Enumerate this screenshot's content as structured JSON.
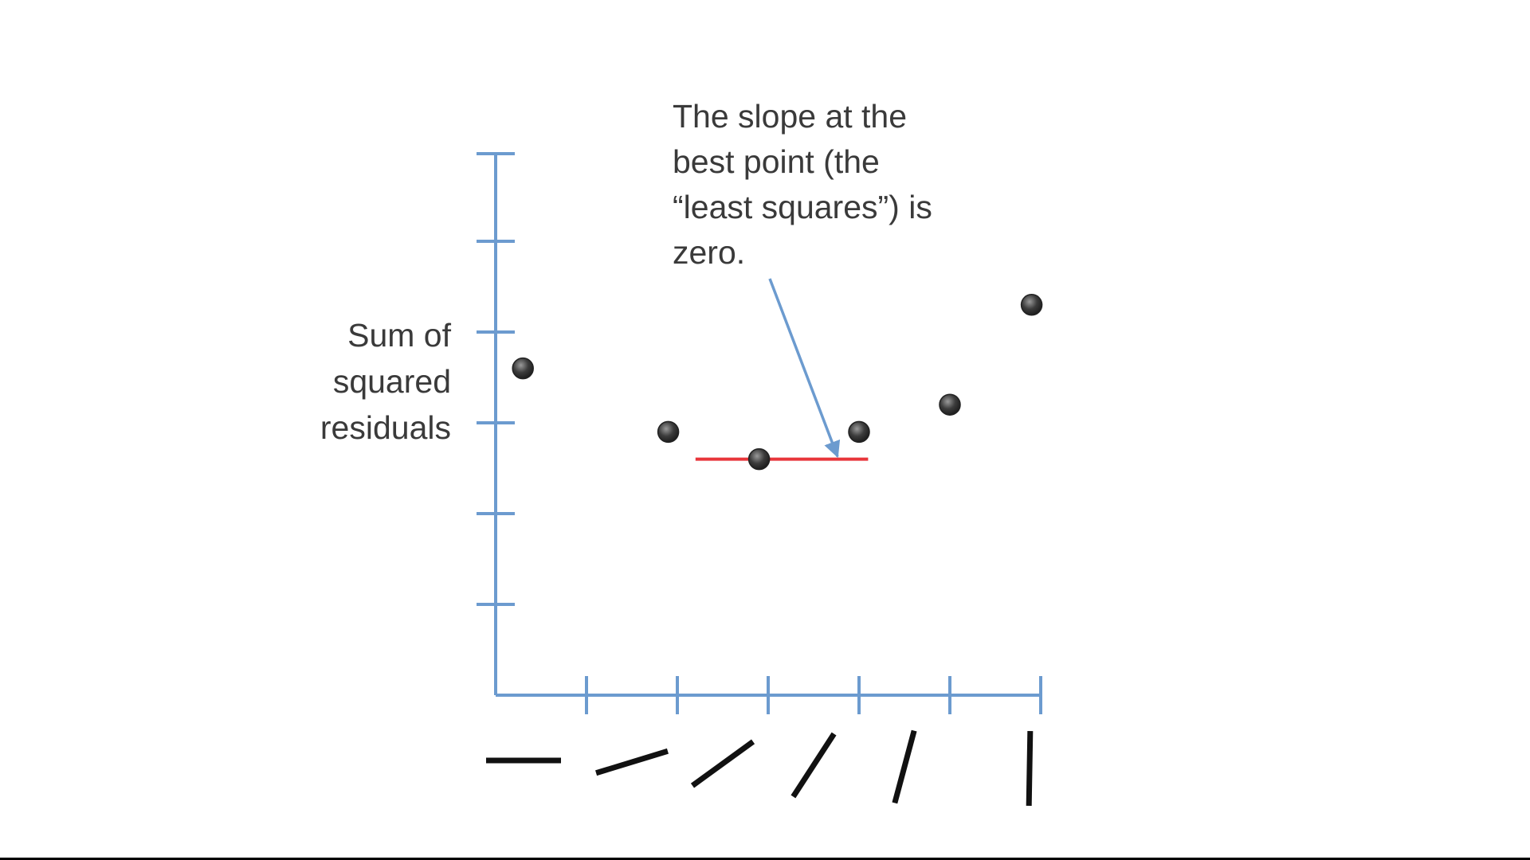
{
  "chart_data": {
    "type": "scatter",
    "ylabel": "Sum of\nsquared\nresiduals",
    "xlabel": "",
    "title": "",
    "x_categories": [
      "flat",
      "shallow",
      "moderate",
      "steep",
      "steeper",
      "vertical"
    ],
    "x_category_slope_angles_deg": [
      0,
      17,
      36,
      57,
      75,
      89
    ],
    "points": [
      {
        "x": 0.3,
        "y": 3.6
      },
      {
        "x": 1.9,
        "y": 2.9
      },
      {
        "x": 2.9,
        "y": 2.6
      },
      {
        "x": 4.0,
        "y": 2.9
      },
      {
        "x": 5.0,
        "y": 3.2
      },
      {
        "x": 5.9,
        "y": 4.3
      }
    ],
    "xlim": [
      -0.7,
      6.0
    ],
    "ylim": [
      0,
      6
    ],
    "x_ticks": [
      0,
      1,
      2,
      3,
      4,
      5,
      6
    ],
    "y_ticks": [
      1,
      2,
      3,
      4,
      5,
      6
    ],
    "tangent_line": {
      "x_start": 2.2,
      "x_end": 4.1,
      "y": 2.6,
      "color": "#e8353a"
    },
    "annotation": {
      "text": "The slope at the\nbest point (the\n“least squares”) is\nzero.",
      "arrow_to": {
        "x": 3.5,
        "y": 2.7
      }
    },
    "grid": false,
    "legend": "none",
    "axis_color": "#6c9bcf",
    "point_color": "#3a3a3a"
  }
}
